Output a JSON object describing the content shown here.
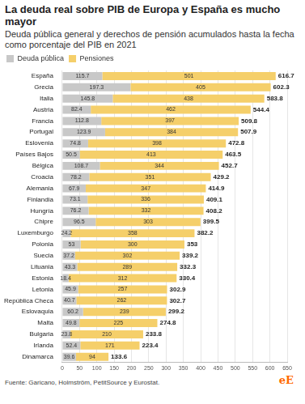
{
  "chart_data": {
    "type": "bar",
    "orientation": "horizontal",
    "stacked": true,
    "title": "La deuda real sobre PIB de Europa y España es mucho mayor",
    "subtitle": "Deuda pública general y derechos de pensión acumulados hasta la fecha como porcentaje del PIB en 2021",
    "source": "Fuente: Garicano, Holmström, PetitSource y Eurostat.",
    "logo": "eE",
    "categories": [
      "España",
      "Grecia",
      "Italia",
      "Austria",
      "Francia",
      "Portugal",
      "Eslovenia",
      "Países Bajos",
      "Bélgica",
      "Croacia",
      "Alemania",
      "Finlandia",
      "Hungría",
      "Chipre",
      "Luxemburgo",
      "Polonia",
      "Suecia",
      "Lituania",
      "Estonia",
      "Letonia",
      "República Checa",
      "Eslovaquia",
      "Malta",
      "Bulgaria",
      "Irlanda",
      "Dinamarca"
    ],
    "series": [
      {
        "name": "Deuda pública",
        "color": "#c8c8c8",
        "values": [
          115.7,
          197.3,
          145.8,
          82.4,
          112.8,
          123.9,
          74.8,
          50.5,
          108.7,
          78.2,
          67.9,
          73.1,
          76.2,
          96.5,
          24.2,
          53,
          37.2,
          43.3,
          18.4,
          45.9,
          40.7,
          60.2,
          49.8,
          23.8,
          52.4,
          39.6
        ]
      },
      {
        "name": "Pensiones",
        "color": "#f5cf6a",
        "values": [
          501,
          405,
          438,
          462,
          397,
          384,
          398,
          413,
          344,
          351,
          347,
          336,
          332,
          303,
          358,
          300,
          302,
          289,
          312,
          257,
          262,
          239,
          225,
          210,
          171,
          94
        ]
      }
    ],
    "totals": [
      616.7,
      602.3,
      583.8,
      544.4,
      509.8,
      507.9,
      472.8,
      463.5,
      452.7,
      429.2,
      414.9,
      409.1,
      408.2,
      399.5,
      382.2,
      353,
      339.2,
      332.3,
      330.4,
      302.9,
      302.7,
      299.2,
      274.8,
      233.8,
      223.4,
      133.6
    ],
    "xlim": [
      0,
      650
    ],
    "xticks": [
      0,
      50,
      100,
      150,
      200,
      250,
      300,
      350,
      400,
      450,
      500,
      550,
      600,
      650
    ],
    "grid": true,
    "legend": "top-left",
    "data_labels": true
  }
}
